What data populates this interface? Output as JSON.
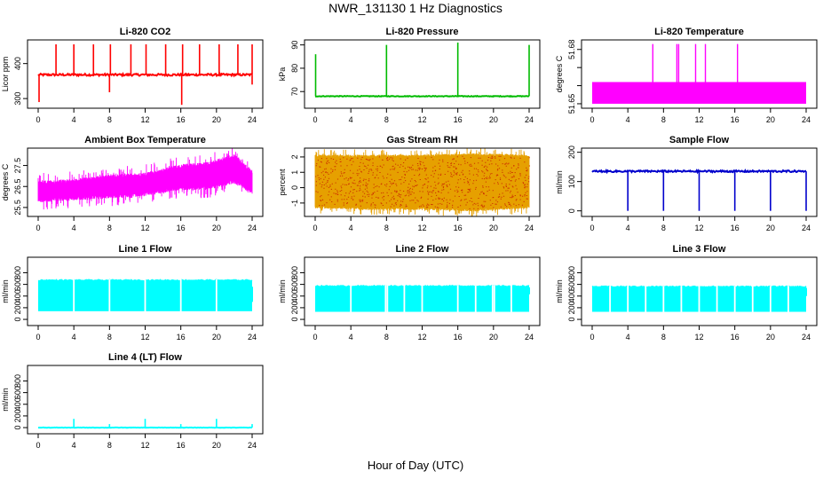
{
  "page": {
    "title": "NWR_131130  1 Hz Diagnostics",
    "xlabel": "Hour of Day (UTC)"
  },
  "chart_data": [
    {
      "type": "line",
      "title": "Li-820 CO2",
      "ylabel": "Licor ppm",
      "color": "#ff0000",
      "xlim": [
        0,
        24
      ],
      "xticks": [
        0,
        4,
        8,
        12,
        16,
        20,
        24
      ],
      "ylim": [
        280,
        460
      ],
      "yticks": [
        300,
        400
      ],
      "style": "baseline_spikes",
      "baseline": 368,
      "noise": 3,
      "spikes_up": [
        [
          2,
          455
        ],
        [
          4,
          455
        ],
        [
          6.2,
          455
        ],
        [
          8.1,
          455
        ],
        [
          10.4,
          455
        ],
        [
          12.1,
          455
        ],
        [
          14.3,
          455
        ],
        [
          16.2,
          455
        ],
        [
          18.1,
          455
        ],
        [
          20.3,
          455
        ],
        [
          22.4,
          455
        ],
        [
          24,
          455
        ]
      ],
      "spikes_down": [
        [
          0.1,
          290
        ],
        [
          8,
          318
        ],
        [
          16.1,
          282
        ],
        [
          24,
          340
        ]
      ]
    },
    {
      "type": "line",
      "title": "Li-820 Pressure",
      "ylabel": "kPa",
      "color": "#00bb00",
      "xlim": [
        0,
        24
      ],
      "xticks": [
        0,
        4,
        8,
        12,
        16,
        20,
        24
      ],
      "ylim": [
        64,
        91
      ],
      "yticks": [
        70,
        80,
        90
      ],
      "style": "baseline_spikes",
      "baseline": 68,
      "noise": 0.15,
      "spikes_up": [
        [
          0.05,
          86
        ],
        [
          8,
          90
        ],
        [
          16,
          91
        ],
        [
          24,
          90
        ]
      ],
      "spikes_down": []
    },
    {
      "type": "line",
      "title": "Li-820 Temperature",
      "ylabel": "degrees C",
      "color": "#ff00ff",
      "xlim": [
        0,
        24
      ],
      "xticks": [
        0,
        4,
        8,
        12,
        16,
        20,
        24
      ],
      "ylim": [
        51.649,
        51.6838
      ],
      "yticks": [
        51.65,
        51.66,
        51.67,
        51.68
      ],
      "ytick_labels": [
        "51.65",
        "",
        "",
        "51.68"
      ],
      "style": "block",
      "block_low": 51.65,
      "block_high": 51.662,
      "spikes_up": [
        [
          6.8,
          51.683
        ],
        [
          9.5,
          51.683
        ],
        [
          9.7,
          51.683
        ],
        [
          11.6,
          51.683
        ],
        [
          12.7,
          51.683
        ],
        [
          16.3,
          51.683
        ]
      ]
    },
    {
      "type": "line",
      "title": "Ambient Box Temperature",
      "ylabel": "degrees C",
      "color": "#ff00ff",
      "xlim": [
        0,
        24
      ],
      "xticks": [
        0,
        4,
        8,
        12,
        16,
        20,
        24
      ],
      "ylim": [
        25.2,
        28.2
      ],
      "yticks": [
        25.5,
        26.5,
        27.5
      ],
      "style": "band",
      "band": [
        [
          0,
          25.9,
          26.6
        ],
        [
          4,
          26.0,
          26.7
        ],
        [
          8,
          26.1,
          26.9
        ],
        [
          12,
          26.2,
          27.0
        ],
        [
          16,
          26.5,
          27.4
        ],
        [
          19,
          26.5,
          27.5
        ],
        [
          22,
          26.8,
          27.9
        ],
        [
          24,
          26.3,
          27.1
        ]
      ],
      "spread": 0.55
    },
    {
      "type": "scatter",
      "title": "Gas Stream RH",
      "ylabel": "percent",
      "color": "#e6a000",
      "color2": "#cc3300",
      "xlim": [
        0,
        24
      ],
      "xticks": [
        0,
        4,
        8,
        12,
        16,
        20,
        24
      ],
      "ylim": [
        -1.7,
        2.4
      ],
      "yticks": [
        -1,
        0,
        1,
        2
      ],
      "style": "band",
      "band": [
        [
          0,
          -1.2,
          2.0
        ],
        [
          6,
          -1.3,
          2.0
        ],
        [
          12,
          -1.3,
          2.0
        ],
        [
          18,
          -1.4,
          2.1
        ],
        [
          24,
          -1.2,
          2.0
        ]
      ],
      "spread": 0.5
    },
    {
      "type": "line",
      "title": "Sample Flow",
      "ylabel": "ml/min",
      "color": "#0000cc",
      "xlim": [
        0,
        24
      ],
      "xticks": [
        0,
        4,
        8,
        12,
        16,
        20,
        24
      ],
      "ylim": [
        -10,
        205
      ],
      "yticks": [
        0,
        100,
        200
      ],
      "style": "baseline_spikes",
      "baseline": 135,
      "noise": 3,
      "spikes_up": [],
      "spikes_down": [
        [
          4,
          0
        ],
        [
          8,
          0
        ],
        [
          12,
          0
        ],
        [
          16,
          0
        ],
        [
          20,
          0
        ],
        [
          24,
          0
        ]
      ]
    },
    {
      "type": "line",
      "title": "Line 1 Flow",
      "ylabel": "ml/min",
      "color": "#00ffff",
      "xlim": [
        0,
        24
      ],
      "xticks": [
        0,
        4,
        8,
        12,
        16,
        20,
        24
      ],
      "ylim": [
        -60,
        1020
      ],
      "yticks": [
        0,
        200,
        400,
        600,
        800
      ],
      "style": "flow_block",
      "block_low": 140,
      "block_high": 670,
      "gaps": [
        4,
        8,
        12,
        16,
        20
      ],
      "tail": [
        24,
        300,
        560
      ]
    },
    {
      "type": "line",
      "title": "Line 2 Flow",
      "ylabel": "ml/min",
      "color": "#00ffff",
      "xlim": [
        0,
        24
      ],
      "xticks": [
        0,
        4,
        8,
        12,
        16,
        20,
        24
      ],
      "ylim": [
        -60,
        1020
      ],
      "yticks": [
        0,
        200,
        400,
        600,
        800
      ],
      "style": "flow_block",
      "block_low": 130,
      "block_high": 570,
      "gaps": [
        4,
        7.9,
        8.1,
        10,
        12,
        16,
        18,
        19.9,
        20.1,
        22
      ],
      "tail": [
        24,
        430,
        550
      ]
    },
    {
      "type": "line",
      "title": "Line 3 Flow",
      "ylabel": "ml/min",
      "color": "#00ffff",
      "xlim": [
        0,
        24
      ],
      "xticks": [
        0,
        4,
        8,
        12,
        16,
        20,
        24
      ],
      "ylim": [
        -60,
        1020
      ],
      "yticks": [
        0,
        200,
        400,
        600,
        800
      ],
      "style": "flow_block",
      "block_low": 130,
      "block_high": 560,
      "gaps": [
        2,
        4,
        6,
        8,
        10,
        12,
        14,
        16,
        18,
        20,
        22
      ],
      "tail": [
        24,
        400,
        540
      ]
    },
    {
      "type": "line",
      "title": "Line 4 (LT) Flow",
      "ylabel": "ml/min",
      "color": "#00ffff",
      "xlim": [
        0,
        24
      ],
      "xticks": [
        0,
        4,
        8,
        12,
        16,
        20,
        24
      ],
      "ylim": [
        -60,
        1020
      ],
      "yticks": [
        0,
        200,
        400,
        600,
        800
      ],
      "style": "baseline_spikes",
      "baseline": 0,
      "noise": 3,
      "spikes_up": [
        [
          4,
          150
        ],
        [
          8,
          60
        ],
        [
          12,
          150
        ],
        [
          16,
          60
        ],
        [
          20,
          150
        ],
        [
          24,
          60
        ]
      ],
      "spikes_down": []
    }
  ]
}
